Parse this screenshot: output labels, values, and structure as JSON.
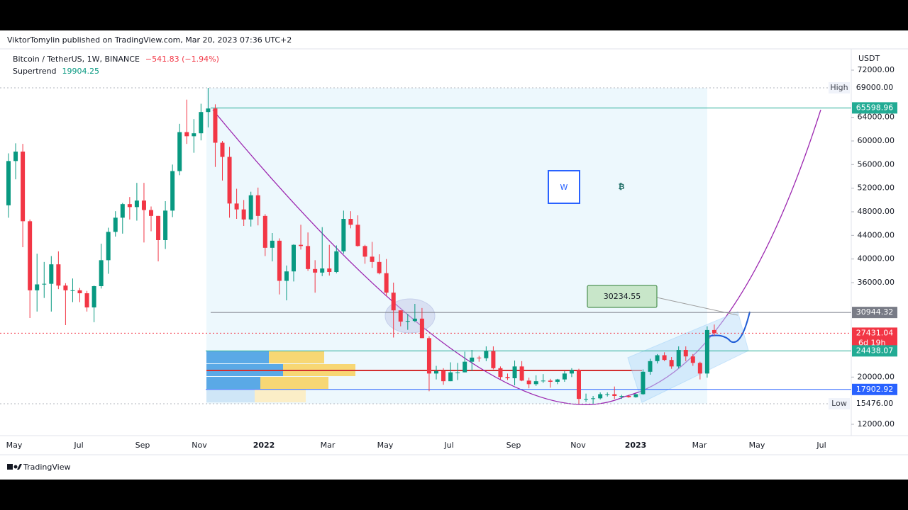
{
  "publisher": "ViktorTomylin published on TradingView.com, Mar 20, 2023 07:36 UTC+2",
  "footer": "TradingView",
  "chart_data": {
    "type": "candlestick",
    "title": "Bitcoin / TetherUS, 1W, BINANCE",
    "change": "−541.83 (−1.94%)",
    "indicator": {
      "name": "Supertrend",
      "value": 19904.25
    },
    "currency": "USDT",
    "up_color": "#089981",
    "down_color": "#f23645",
    "open": [
      49100,
      56600,
      58200,
      46400,
      34700,
      35700,
      35800,
      39100,
      35500,
      34700,
      34700,
      34200,
      31800,
      35400,
      39800,
      44600,
      47000,
      49300,
      48800,
      49900,
      48300,
      47300,
      43200,
      48200,
      54900,
      61500,
      60800,
      61300,
      64900,
      65500,
      59700,
      57300,
      49400,
      48400,
      46700,
      50800,
      47300,
      41900,
      43100,
      36300,
      37900,
      42400,
      42200,
      38300,
      37700,
      38400,
      37800,
      41300,
      46800,
      45800,
      42200,
      40400,
      39500,
      37600,
      34300,
      31300,
      29400,
      29500,
      29900,
      26600,
      20600,
      21000,
      19300,
      20800,
      20800,
      22600,
      23300,
      23200,
      24400,
      21500,
      20000,
      19800,
      21800,
      19400,
      18800,
      19300,
      19400,
      19200,
      19600,
      20600,
      21200,
      16300,
      16300,
      16400,
      17100,
      17100,
      16800,
      16800,
      16600,
      17100,
      20900,
      22700,
      23700,
      22900,
      21800,
      24600,
      23500,
      22400,
      20600,
      27970
    ],
    "high": [
      57900,
      59600,
      59500,
      46700,
      40900,
      39500,
      40500,
      41300,
      35900,
      36700,
      35100,
      34600,
      35500,
      42600,
      45300,
      48100,
      49500,
      50500,
      52900,
      52900,
      48900,
      47300,
      49800,
      56000,
      62900,
      67000,
      63700,
      66300,
      69000,
      66200,
      60000,
      59000,
      51900,
      50000,
      51400,
      52100,
      47600,
      44400,
      43500,
      38900,
      42500,
      45800,
      44500,
      39800,
      45400,
      42400,
      42300,
      48200,
      48100,
      47400,
      42400,
      42900,
      40800,
      40000,
      36000,
      31300,
      30700,
      32400,
      31700,
      26900,
      21900,
      21500,
      22500,
      22400,
      24300,
      24600,
      23600,
      25200,
      25200,
      21800,
      20600,
      22800,
      22700,
      19900,
      20300,
      20500,
      19700,
      19700,
      21000,
      21500,
      21400,
      17200,
      16800,
      17400,
      17400,
      18400,
      17000,
      17000,
      17200,
      21300,
      23100,
      23900,
      24200,
      23400,
      25200,
      25200,
      23900,
      22600,
      28600,
      28900
    ],
    "low": [
      47000,
      53500,
      42000,
      30000,
      31100,
      33400,
      31100,
      34900,
      28800,
      32700,
      32700,
      31100,
      29300,
      35000,
      37500,
      43800,
      44300,
      46700,
      46500,
      42800,
      44700,
      39600,
      41700,
      47100,
      54200,
      59500,
      58000,
      60100,
      62300,
      55600,
      53300,
      47000,
      46800,
      45600,
      45500,
      45700,
      40500,
      39600,
      34000,
      33000,
      36200,
      41600,
      38000,
      34300,
      37100,
      37200,
      37600,
      40900,
      45200,
      42100,
      39200,
      38500,
      37400,
      33700,
      26700,
      28600,
      28000,
      29300,
      26600,
      17600,
      19600,
      18700,
      19300,
      19500,
      20800,
      21000,
      22600,
      22700,
      21300,
      19600,
      19500,
      18600,
      19300,
      18100,
      18500,
      19000,
      18200,
      18800,
      19200,
      20000,
      15500,
      15800,
      15500,
      16200,
      16700,
      16300,
      16300,
      16500,
      16500,
      17000,
      20400,
      22300,
      22700,
      21400,
      21500,
      22700,
      21900,
      19600,
      19900,
      27000
    ],
    "close": [
      56600,
      58200,
      46400,
      34700,
      35700,
      35800,
      39100,
      35500,
      34700,
      34700,
      34200,
      31800,
      35400,
      39800,
      44600,
      47000,
      49300,
      48800,
      49900,
      48300,
      47300,
      43200,
      48200,
      54900,
      61500,
      60800,
      61300,
      64900,
      65500,
      59700,
      57300,
      49400,
      48400,
      46700,
      50800,
      47300,
      41900,
      43100,
      36300,
      37900,
      42400,
      42200,
      38300,
      37700,
      38400,
      37800,
      41300,
      46800,
      45800,
      42200,
      40400,
      39500,
      37600,
      34300,
      31300,
      29400,
      29500,
      29900,
      26600,
      20600,
      21000,
      19300,
      20800,
      20800,
      22600,
      23300,
      23200,
      24400,
      21500,
      20000,
      19800,
      21800,
      19400,
      18800,
      19300,
      19400,
      19200,
      19600,
      20600,
      21200,
      16300,
      16300,
      16400,
      17100,
      17100,
      16800,
      16800,
      16600,
      17100,
      20900,
      22700,
      23700,
      22900,
      21800,
      24600,
      23500,
      22400,
      20600,
      27970,
      27431.04
    ],
    "x_labels": [
      "May",
      "Jul",
      "Sep",
      "Nov",
      "2022",
      "Mar",
      "May",
      "Jul",
      "Sep",
      "Nov",
      "2023",
      "Mar",
      "May",
      "Jul"
    ],
    "ylim": [
      10080,
      75480
    ],
    "yticks": [
      {
        "value": 72000,
        "label": "72000.00"
      },
      {
        "value": 64000,
        "label": "64000.00"
      },
      {
        "value": 60000,
        "label": "60000.00"
      },
      {
        "value": 56000,
        "label": "56000.00"
      },
      {
        "value": 52000,
        "label": "52000.00"
      },
      {
        "value": 48000,
        "label": "48000.00"
      },
      {
        "value": 44000,
        "label": "44000.00"
      },
      {
        "value": 40000,
        "label": "40000.00"
      },
      {
        "value": 36000,
        "label": "36000.00"
      },
      {
        "value": 20000,
        "label": "20000.00"
      },
      {
        "value": 12000,
        "label": "12000.00"
      }
    ],
    "levels": [
      {
        "value": 69000,
        "label": "69000.00",
        "tag": "High",
        "color": "#b2b5be"
      },
      {
        "value": 65598.96,
        "label": "65598.96",
        "color": "#22ab94"
      },
      {
        "value": 30944.32,
        "label": "30944.32",
        "color": "#787b86"
      },
      {
        "value": 27431.04,
        "label": "27431.04",
        "countdown": "6d 19h",
        "color": "#f23645"
      },
      {
        "value": 24438.07,
        "label": "24438.07",
        "color": "#22ab94"
      },
      {
        "value": 17902.92,
        "label": "17902.92",
        "color": "#2962ff"
      },
      {
        "value": 15476,
        "label": "15476.00",
        "tag": "Low",
        "color": "#b2b5be"
      }
    ],
    "callout": 30234.55,
    "logo_letter": "W",
    "coin_symbol": "₿"
  }
}
